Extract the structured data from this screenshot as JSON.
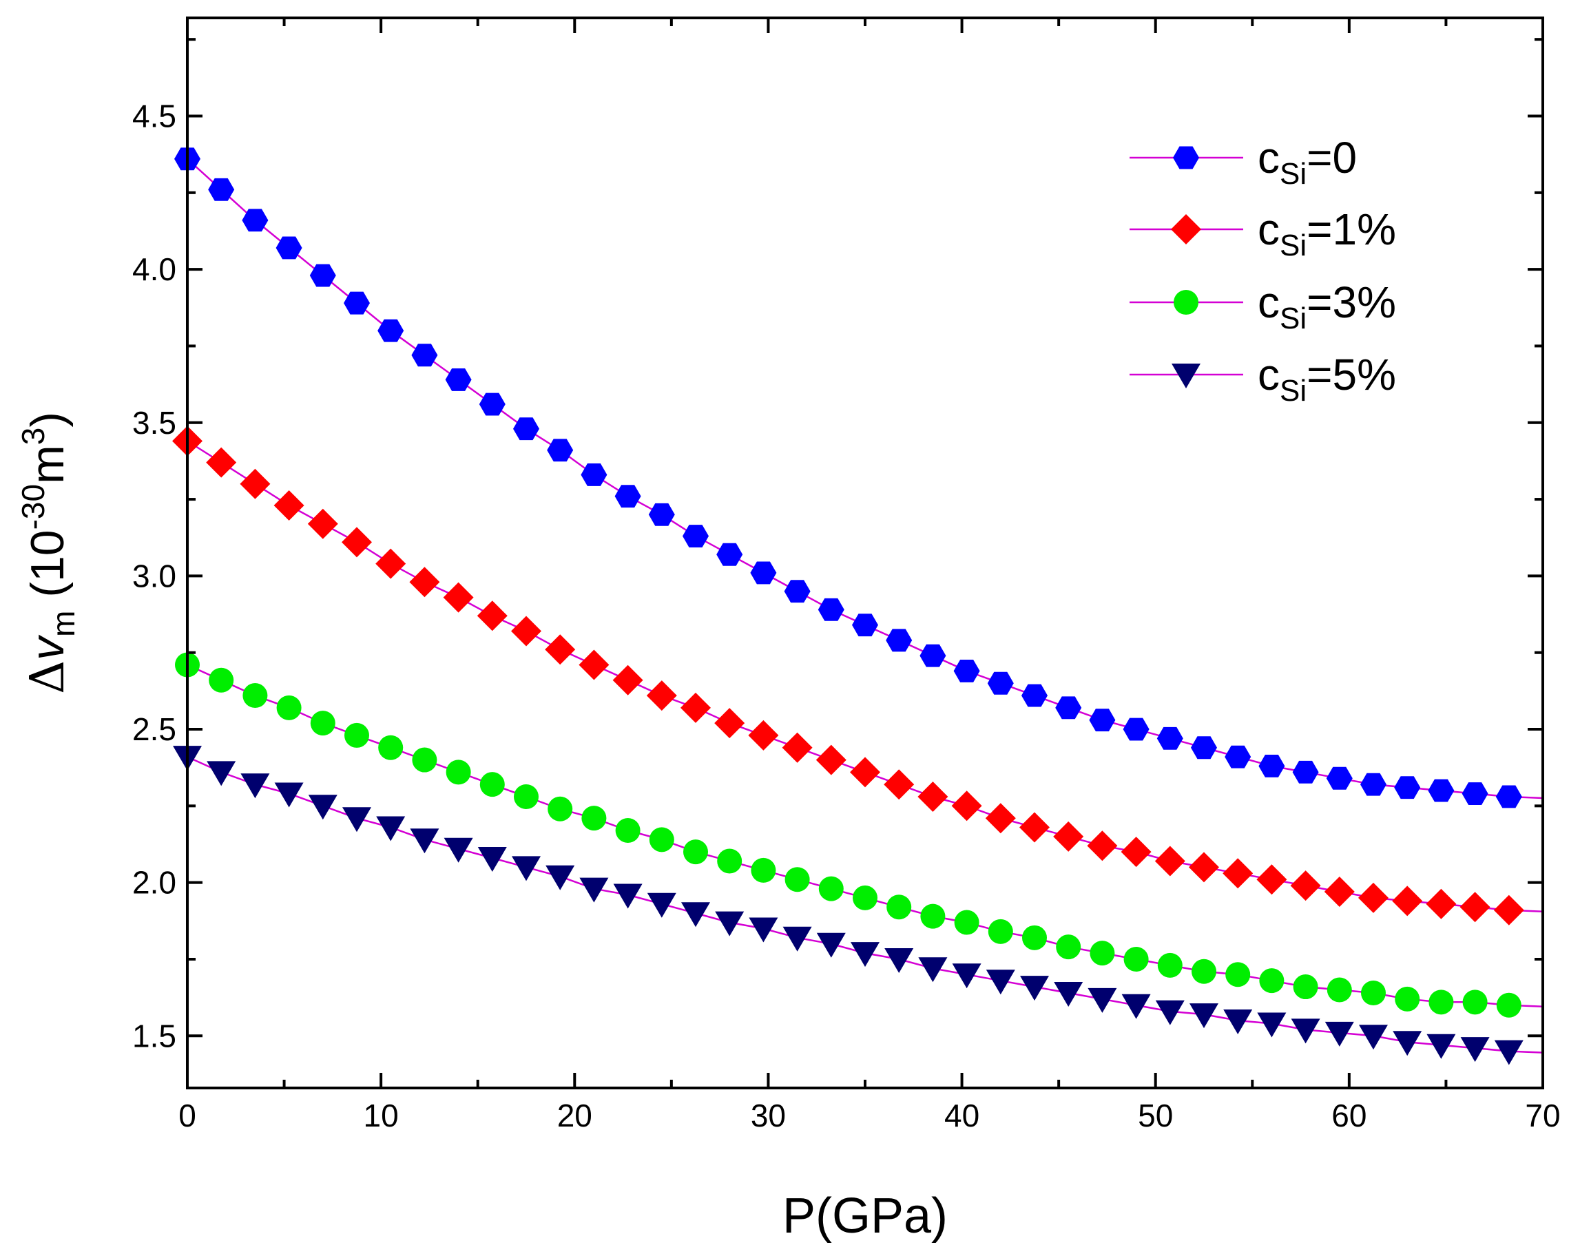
{
  "chart_data": {
    "type": "line",
    "title": "",
    "xlabel": "P(GPa)",
    "ylabel": {
      "delta": "Δ",
      "var": "v",
      "sub": "m",
      "paren_open": " (10",
      "exp": "-30",
      "unit": "m",
      "unit_exp": "3",
      "paren_close": ")"
    },
    "xlim": [
      0,
      70
    ],
    "ylim": [
      1.33,
      4.82
    ],
    "xticks": [
      "0",
      "10",
      "20",
      "30",
      "40",
      "50",
      "60",
      "70"
    ],
    "xtick_values": [
      0,
      10,
      20,
      30,
      40,
      50,
      60,
      70
    ],
    "yticks": [
      "1.5",
      "2.0",
      "2.5",
      "3.0",
      "3.5",
      "4.0",
      "4.5"
    ],
    "ytick_values": [
      1.5,
      2.0,
      2.5,
      3.0,
      3.5,
      4.0,
      4.5
    ],
    "grid": false,
    "legend_position": "top-right",
    "line_color": "#d400d4",
    "x": [
      0,
      1.75,
      3.5,
      5.25,
      7.0,
      8.75,
      10.5,
      12.25,
      14.0,
      15.75,
      17.5,
      19.25,
      21.0,
      22.75,
      24.5,
      26.25,
      28.0,
      29.75,
      31.5,
      33.25,
      35.0,
      36.75,
      38.5,
      40.25,
      42.0,
      43.75,
      45.5,
      47.25,
      49.0,
      50.75,
      52.5,
      54.25,
      56.0,
      57.75,
      59.5,
      61.25,
      63.0,
      64.75,
      66.5,
      68.25
    ],
    "series": [
      {
        "label_main": "c",
        "label_sub": "Si",
        "label_rest": "=0",
        "marker": "hexagon",
        "color": "#0000ff",
        "values": [
          4.36,
          4.26,
          4.16,
          4.07,
          3.98,
          3.89,
          3.8,
          3.72,
          3.64,
          3.56,
          3.48,
          3.41,
          3.33,
          3.26,
          3.2,
          3.13,
          3.07,
          3.01,
          2.95,
          2.89,
          2.84,
          2.79,
          2.74,
          2.69,
          2.65,
          2.61,
          2.57,
          2.53,
          2.5,
          2.47,
          2.44,
          2.41,
          2.38,
          2.36,
          2.34,
          2.32,
          2.31,
          2.3,
          2.29,
          2.28
        ]
      },
      {
        "label_main": "c",
        "label_sub": "Si",
        "label_rest": "=1%",
        "marker": "diamond",
        "color": "#ff0000",
        "values": [
          3.44,
          3.37,
          3.3,
          3.23,
          3.17,
          3.11,
          3.04,
          2.98,
          2.93,
          2.87,
          2.82,
          2.76,
          2.71,
          2.66,
          2.61,
          2.57,
          2.52,
          2.48,
          2.44,
          2.4,
          2.36,
          2.32,
          2.28,
          2.25,
          2.21,
          2.18,
          2.15,
          2.12,
          2.1,
          2.07,
          2.05,
          2.03,
          2.01,
          1.99,
          1.97,
          1.95,
          1.94,
          1.93,
          1.92,
          1.91
        ]
      },
      {
        "label_main": "c",
        "label_sub": "Si",
        "label_rest": "=3%",
        "marker": "circle",
        "color": "#00ee00",
        "values": [
          2.71,
          2.66,
          2.61,
          2.57,
          2.52,
          2.48,
          2.44,
          2.4,
          2.36,
          2.32,
          2.28,
          2.24,
          2.21,
          2.17,
          2.14,
          2.1,
          2.07,
          2.04,
          2.01,
          1.98,
          1.95,
          1.92,
          1.89,
          1.87,
          1.84,
          1.82,
          1.79,
          1.77,
          1.75,
          1.73,
          1.71,
          1.7,
          1.68,
          1.66,
          1.65,
          1.64,
          1.62,
          1.61,
          1.61,
          1.6
        ]
      },
      {
        "label_main": "c",
        "label_sub": "Si",
        "label_rest": "=5%",
        "marker": "triangle-down",
        "color": "#00006e",
        "values": [
          2.41,
          2.36,
          2.32,
          2.29,
          2.25,
          2.21,
          2.18,
          2.14,
          2.11,
          2.08,
          2.05,
          2.02,
          1.98,
          1.96,
          1.93,
          1.9,
          1.87,
          1.85,
          1.82,
          1.8,
          1.77,
          1.75,
          1.72,
          1.7,
          1.68,
          1.66,
          1.64,
          1.62,
          1.6,
          1.58,
          1.57,
          1.55,
          1.54,
          1.52,
          1.51,
          1.5,
          1.48,
          1.47,
          1.46,
          1.45
        ]
      }
    ]
  }
}
